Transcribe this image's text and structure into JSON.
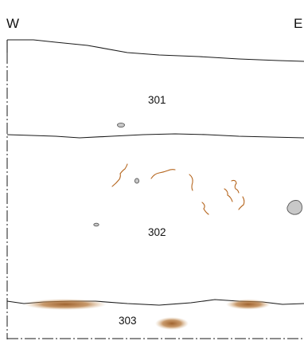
{
  "orientation": {
    "west": "W",
    "east": "E"
  },
  "layers": [
    {
      "id": "301",
      "label": "301"
    },
    {
      "id": "302",
      "label": "302"
    },
    {
      "id": "303",
      "label": "303"
    }
  ],
  "colors": {
    "outline": "#1a1a1a",
    "root_trace": "#b5651d",
    "stone_fill": "#c8c8c8",
    "stain": "#a0652a"
  }
}
